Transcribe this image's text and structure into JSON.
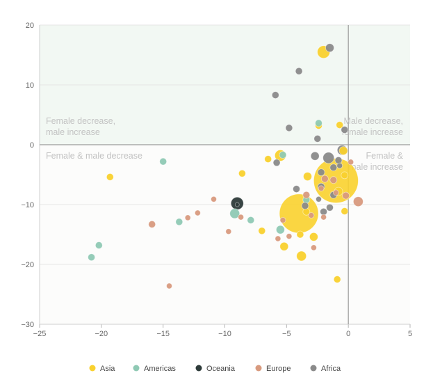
{
  "chart_data": {
    "type": "scatter",
    "title": "",
    "xlabel": "",
    "ylabel": "",
    "xlim": [
      -25,
      5
    ],
    "ylim": [
      -30,
      20
    ],
    "x_ticks": [
      -25,
      -20,
      -15,
      -10,
      -5,
      0,
      5
    ],
    "y_ticks": [
      -30,
      -20,
      -10,
      0,
      10,
      20
    ],
    "x_tick_labels": [
      "−25",
      "−20",
      "−15",
      "−10",
      "−5",
      "0",
      "5"
    ],
    "y_tick_labels": [
      "−30",
      "−20",
      "−10",
      "0",
      "10",
      "20"
    ],
    "grid": true,
    "legend_position": "bottom",
    "quadrant_labels": {
      "top_left": [
        "Female decrease,",
        "male increase"
      ],
      "top_right": [
        "Male decrease,",
        "female increase"
      ],
      "bottom_left": [
        "Female & male decrease"
      ],
      "bottom_right": [
        "Female &",
        "male increase"
      ]
    },
    "colors": {
      "Asia": "#F9D12E",
      "Americas": "#8FC9B4",
      "Oceania": "#2E3B3A",
      "Europe": "#D89A7E",
      "Africa": "#8A8A8A",
      "axis": "#9a9a9a",
      "grid": "#e6e6e6",
      "quadrant_tint": "#f2f8f3"
    },
    "series": [
      {
        "name": "Asia",
        "points": [
          [
            -2.0,
            15.5,
            9
          ],
          [
            -0.7,
            3.3,
            5
          ],
          [
            -2.4,
            3.2,
            5
          ],
          [
            -5.5,
            -1.8,
            8
          ],
          [
            -6.5,
            -2.4,
            5
          ],
          [
            -0.4,
            -1.0,
            6
          ],
          [
            -8.6,
            -4.8,
            5
          ],
          [
            -19.3,
            -5.4,
            5
          ],
          [
            -3.3,
            -5.3,
            6
          ],
          [
            -1.0,
            -6.0,
            32
          ],
          [
            -0.8,
            -7.8,
            6
          ],
          [
            -0.3,
            -5.1,
            5
          ],
          [
            -4.0,
            -11.5,
            28
          ],
          [
            -0.3,
            -11.1,
            5
          ],
          [
            -3.4,
            -11.2,
            5
          ],
          [
            -7.0,
            -14.4,
            5
          ],
          [
            -2.8,
            -15.4,
            6
          ],
          [
            -5.2,
            -17.0,
            6
          ],
          [
            -3.8,
            -18.6,
            7
          ],
          [
            -0.9,
            -22.5,
            5
          ],
          [
            -3.9,
            -15.0,
            5
          ]
        ]
      },
      {
        "name": "Americas",
        "points": [
          [
            -2.4,
            3.6,
            5
          ],
          [
            -5.3,
            -1.7,
            5
          ],
          [
            -15.0,
            -2.8,
            5
          ],
          [
            -9.2,
            -11.5,
            7
          ],
          [
            -7.9,
            -12.6,
            5
          ],
          [
            -13.7,
            -12.9,
            5
          ],
          [
            -5.5,
            -14.2,
            6
          ],
          [
            -20.2,
            -16.8,
            5
          ],
          [
            -20.8,
            -18.8,
            5
          ],
          [
            -3.4,
            -9.2,
            5
          ]
        ]
      },
      {
        "name": "Oceania",
        "points": [
          [
            -9.0,
            -9.8,
            9
          ],
          [
            -9.0,
            -10.0,
            3
          ]
        ]
      },
      {
        "name": "Europe",
        "points": [
          [
            0.2,
            -2.9,
            4
          ],
          [
            -1.9,
            -5.7,
            5
          ],
          [
            -1.2,
            -5.9,
            5
          ],
          [
            -2.2,
            -7.3,
            4
          ],
          [
            -3.4,
            -8.4,
            5
          ],
          [
            -1.0,
            -8.0,
            4
          ],
          [
            -0.2,
            -8.5,
            5
          ],
          [
            -10.9,
            -9.1,
            4
          ],
          [
            0.8,
            -9.5,
            7
          ],
          [
            -8.7,
            -12.1,
            4
          ],
          [
            -5.3,
            -12.6,
            4
          ],
          [
            -12.2,
            -11.4,
            4
          ],
          [
            -13.0,
            -12.2,
            4
          ],
          [
            -15.9,
            -13.3,
            5
          ],
          [
            -9.7,
            -14.5,
            4
          ],
          [
            -2.0,
            -12.1,
            4
          ],
          [
            -4.8,
            -15.3,
            4
          ],
          [
            -5.7,
            -15.7,
            4
          ],
          [
            -2.8,
            -17.2,
            4
          ],
          [
            -14.5,
            -23.6,
            4
          ],
          [
            -3.0,
            -11.8,
            4
          ]
        ]
      },
      {
        "name": "Africa",
        "points": [
          [
            -1.5,
            16.2,
            6
          ],
          [
            -4.0,
            12.3,
            5
          ],
          [
            -5.9,
            8.3,
            5
          ],
          [
            -4.8,
            2.8,
            5
          ],
          [
            -0.3,
            2.5,
            5
          ],
          [
            -2.5,
            1.0,
            5
          ],
          [
            -2.7,
            -1.9,
            6
          ],
          [
            -1.6,
            -2.2,
            8
          ],
          [
            -0.5,
            -0.9,
            7
          ],
          [
            -0.8,
            -2.6,
            5
          ],
          [
            -1.2,
            -3.8,
            5
          ],
          [
            -5.8,
            -3.0,
            5
          ],
          [
            -2.2,
            -4.6,
            5
          ],
          [
            -4.2,
            -7.4,
            5
          ],
          [
            -3.5,
            -10.2,
            5
          ],
          [
            -2.2,
            -7.0,
            5
          ],
          [
            -1.2,
            -8.4,
            5
          ],
          [
            -2.0,
            -11.2,
            5
          ],
          [
            -1.5,
            -10.5,
            5
          ],
          [
            -0.7,
            -3.5,
            4
          ],
          [
            -2.4,
            -9.1,
            4
          ]
        ]
      }
    ]
  }
}
